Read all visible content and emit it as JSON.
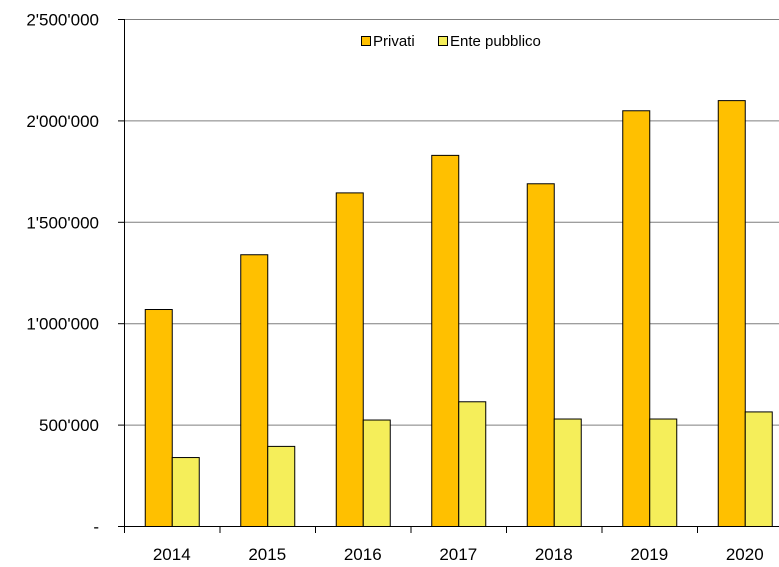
{
  "chart_data": {
    "type": "bar",
    "title": "",
    "xlabel": "",
    "ylabel": "",
    "categories": [
      "2014",
      "2015",
      "2016",
      "2017",
      "2018",
      "2019",
      "2020"
    ],
    "series": [
      {
        "name": "Privati",
        "color": "#FFC000",
        "values": [
          1070000,
          1340000,
          1645000,
          1830000,
          1690000,
          2050000,
          2100000
        ]
      },
      {
        "name": "Ente pubblico",
        "color": "#F5EE5A",
        "values": [
          340000,
          395000,
          525000,
          615000,
          530000,
          530000,
          565000
        ]
      }
    ],
    "ylim": [
      0,
      2500000
    ],
    "yticks": [
      0,
      500000,
      1000000,
      1500000,
      2000000,
      2500000
    ],
    "ytick_labels": [
      "-",
      "500'000",
      "1'000'000",
      "1'500'000",
      "2'000'000",
      "2'500'000"
    ],
    "grid": true,
    "legend_position": "top-center"
  }
}
